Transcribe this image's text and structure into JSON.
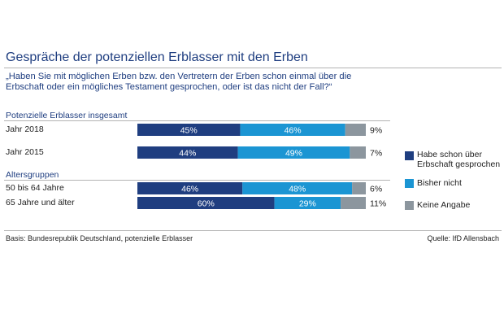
{
  "title": "Gespräche der potenziellen Erblasser mit den Erben",
  "question": "„Haben Sie mit möglichen Erben bzw. den Vertretern der Erben schon einmal über die Erbschaft oder ein mögliches Testament gesprochen, oder ist das nicht der Fall?“",
  "sections": {
    "overall": "Potenzielle Erblasser insgesamt",
    "age": "Altersgruppen"
  },
  "colors": {
    "dark": "#1f3e80",
    "light": "#1b95d3",
    "gray": "#8c969e",
    "title": "#1f3e80",
    "rule": "#b3b3b3"
  },
  "legend": [
    {
      "label": "Habe schon über Erbschaft gesprochen",
      "color": "#1f3e80"
    },
    {
      "label": "Bisher nicht",
      "color": "#1b95d3"
    },
    {
      "label": "Keine Angabe",
      "color": "#8c969e"
    }
  ],
  "footer": {
    "basis": "Basis: Bundesrepublik Deutschland, potenzielle Erblasser",
    "source": "Quelle: IfD Allensbach"
  },
  "chart_data": {
    "type": "bar",
    "orientation": "horizontal",
    "stacked": true,
    "unit": "%",
    "xlim": [
      0,
      100
    ],
    "categories": [
      "Jahr 2018",
      "Jahr 2015",
      "50 bis 64 Jahre",
      "65 Jahre und älter"
    ],
    "series": [
      {
        "name": "Habe schon über Erbschaft gesprochen",
        "values": [
          45,
          44,
          46,
          60
        ]
      },
      {
        "name": "Bisher nicht",
        "values": [
          46,
          49,
          48,
          29
        ]
      },
      {
        "name": "Keine Angabe",
        "values": [
          9,
          7,
          6,
          11
        ]
      }
    ],
    "data_labels": {
      "segment_labels": [
        [
          "45%",
          "46%"
        ],
        [
          "44%",
          "49%"
        ],
        [
          "46%",
          "48%"
        ],
        [
          "60%",
          "29%"
        ]
      ],
      "end_labels": [
        "9%",
        "7%",
        "6%",
        "11%"
      ]
    },
    "legend": "right",
    "grid": false
  }
}
